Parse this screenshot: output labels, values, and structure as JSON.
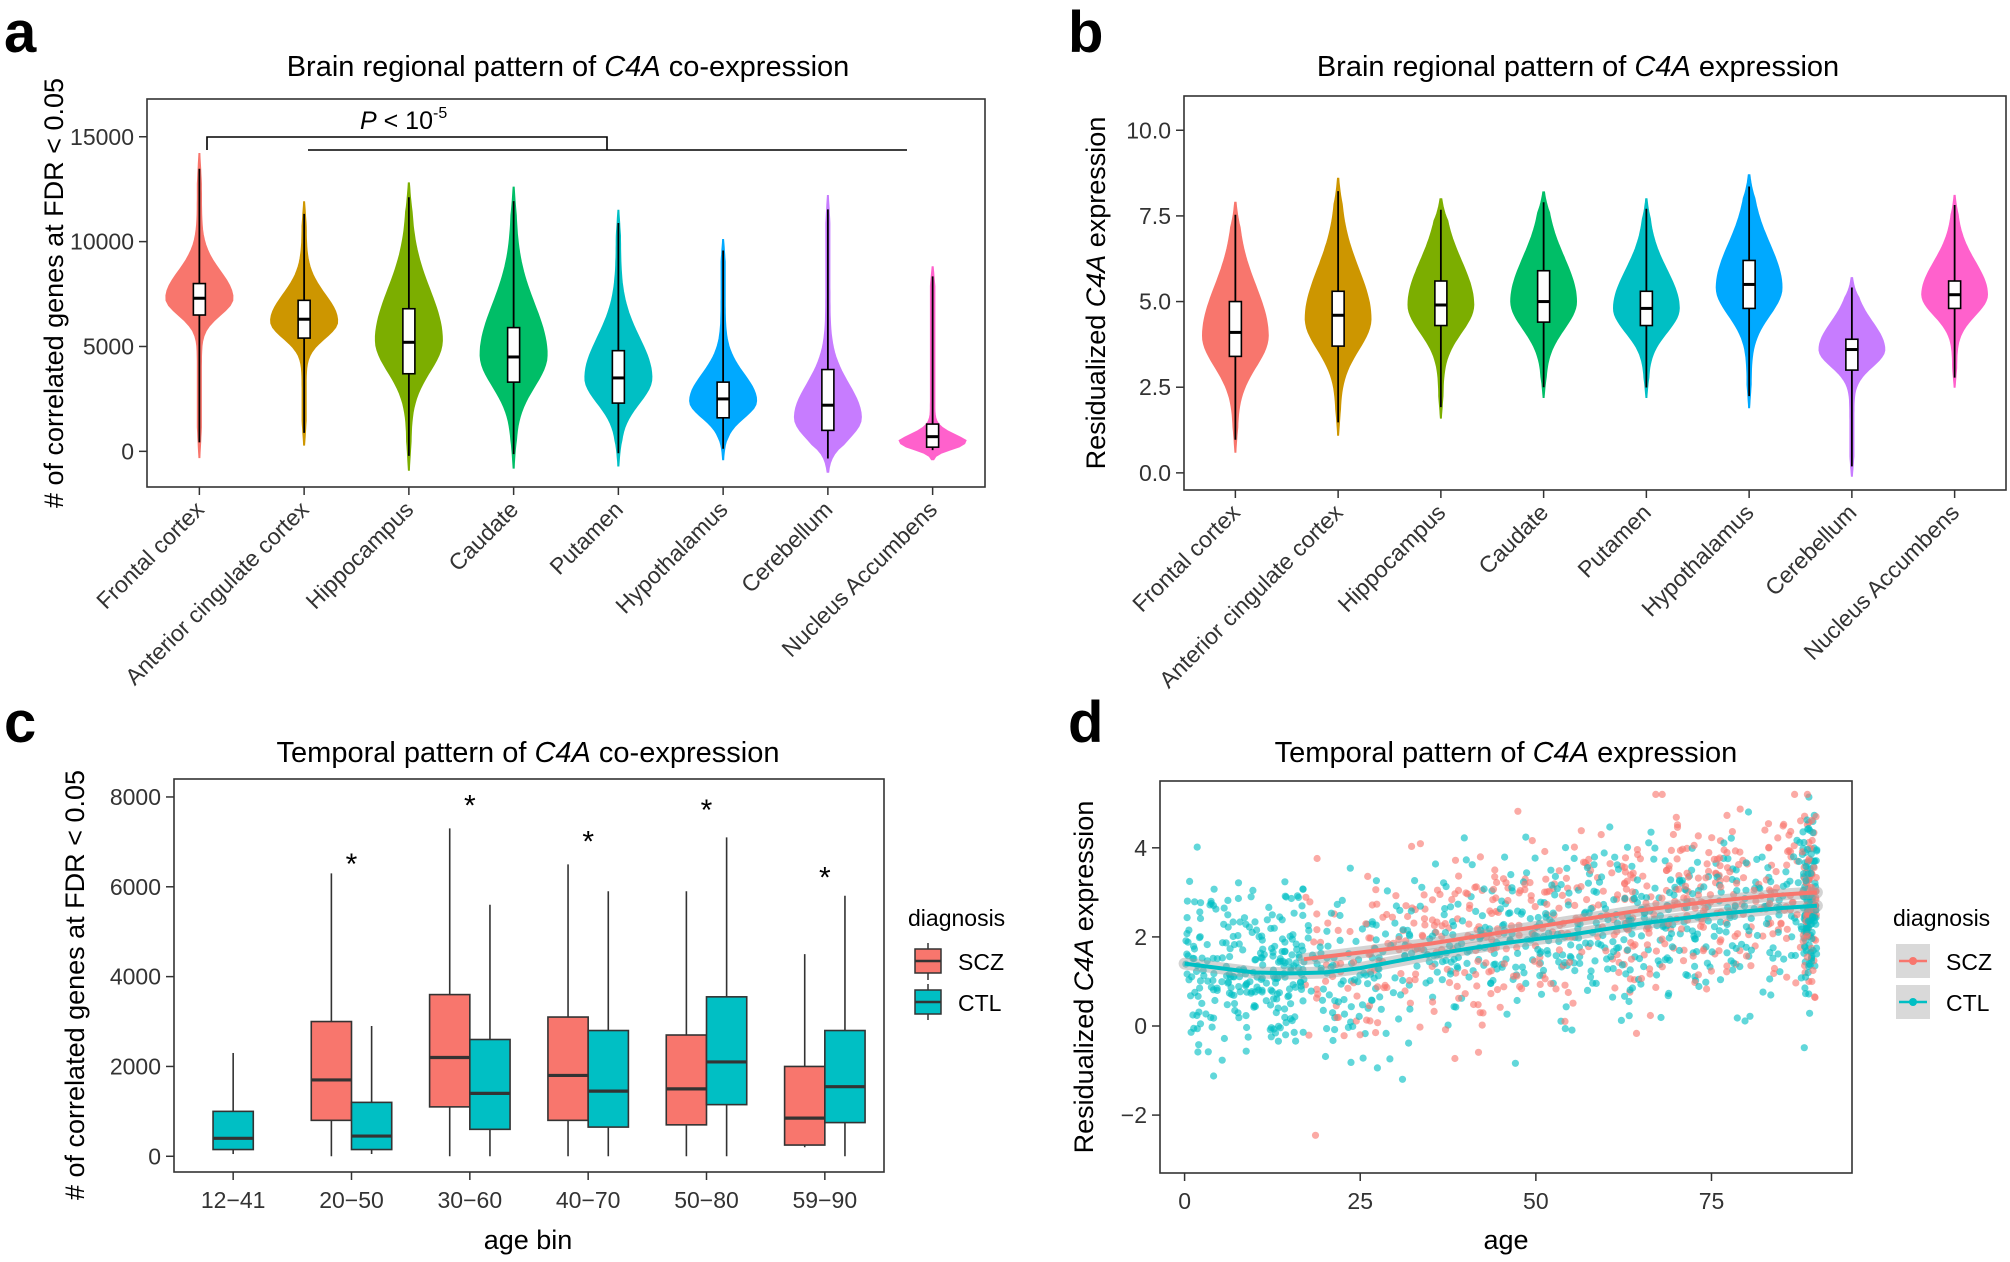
{
  "panels": [
    {
      "letter": "a",
      "title_pre": "Brain regional pattern of ",
      "title_gene": "C4A",
      "title_post": " co-expression",
      "ylabel": "# of correlated genes at FDR < 0.05",
      "significance": {
        "p_prefix": "P",
        "p_text": " < 10",
        "p_exp": "-5"
      }
    },
    {
      "letter": "b",
      "title_pre": "Brain regional pattern of ",
      "title_gene": "C4A",
      "title_post": " expression",
      "ylabel_pre": "Residualized ",
      "ylabel_gene": "C4A",
      "ylabel_post": " expression"
    },
    {
      "letter": "c",
      "title_pre": "Temporal pattern of ",
      "title_gene": "C4A",
      "title_post": " co-expression",
      "ylabel": "# of correlated genes at FDR < 0.05",
      "xlabel": "age bin",
      "legend": {
        "title": "diagnosis",
        "items": [
          "SCZ",
          "CTL"
        ]
      }
    },
    {
      "letter": "d",
      "title_pre": "Temporal pattern of ",
      "title_gene": "C4A",
      "title_post": " expression",
      "ylabel_pre": "Residualized ",
      "ylabel_gene": "C4A",
      "ylabel_post": " expression",
      "xlabel": "age",
      "legend": {
        "title": "diagnosis",
        "items": [
          "SCZ",
          "CTL"
        ]
      }
    }
  ],
  "colors": {
    "regions": [
      "#F8766D",
      "#CD9600",
      "#7CAE00",
      "#00BE67",
      "#00BFC4",
      "#00A9FF",
      "#C77CFF",
      "#FF61CC"
    ],
    "SCZ": "#F8766D",
    "CTL": "#00BFC4"
  },
  "chart_data": [
    {
      "type": "violin",
      "panel": "a",
      "categories": [
        "Frontal cortex",
        "Anterior cingulate cortex",
        "Hippocampus",
        "Caudate",
        "Putamen",
        "Hypothalamus",
        "Cerebellum",
        "Nucleus Accumbens"
      ],
      "yticks": [
        0,
        5000,
        10000,
        15000
      ],
      "yticklabels": [
        "0",
        "5000",
        "10000",
        "15000"
      ],
      "ylim": [
        -1700,
        16800
      ],
      "summaries": [
        {
          "min": -300,
          "q1": 6500,
          "median": 7300,
          "q3": 8000,
          "max": 14200,
          "mode": 7300,
          "spread": 800
        },
        {
          "min": 300,
          "q1": 5400,
          "median": 6300,
          "q3": 7200,
          "max": 11900,
          "mode": 6200,
          "spread": 800
        },
        {
          "min": -900,
          "q1": 3700,
          "median": 5200,
          "q3": 6800,
          "max": 12800,
          "mode": 5300,
          "spread": 1500
        },
        {
          "min": -800,
          "q1": 3300,
          "median": 4500,
          "q3": 5900,
          "max": 12600,
          "mode": 4600,
          "spread": 1500
        },
        {
          "min": -700,
          "q1": 2300,
          "median": 3500,
          "q3": 4800,
          "max": 11500,
          "mode": 3500,
          "spread": 1200
        },
        {
          "min": -400,
          "q1": 1600,
          "median": 2500,
          "q3": 3300,
          "max": 10100,
          "mode": 2400,
          "spread": 800
        },
        {
          "min": -1000,
          "q1": 1000,
          "median": 2200,
          "q3": 3900,
          "max": 12200,
          "mode": 1600,
          "spread": 1000
        },
        {
          "min": -400,
          "q1": 200,
          "median": 700,
          "q3": 1300,
          "max": 8800,
          "mode": 300,
          "spread": 300
        }
      ],
      "comparison": {
        "reference": "Frontal cortex",
        "compared": "Anterior cingulate cortex to Nucleus Accumbens",
        "p": "< 10^-5"
      }
    },
    {
      "type": "violin",
      "panel": "b",
      "categories": [
        "Frontal cortex",
        "Anterior cingulate cortex",
        "Hippocampus",
        "Caudate",
        "Putamen",
        "Hypothalamus",
        "Cerebellum",
        "Nucleus Accumbens"
      ],
      "yticks": [
        0,
        2.5,
        5,
        7.5,
        10
      ],
      "yticklabels": [
        "0.0",
        "2.5",
        "5.0",
        "7.5",
        "10.0"
      ],
      "ylim": [
        -0.5,
        11.0
      ],
      "summaries": [
        {
          "min": 0.6,
          "q1": 3.4,
          "median": 4.1,
          "q3": 5.0,
          "max": 7.9,
          "mode": 4.0,
          "spread": 0.9
        },
        {
          "min": 1.1,
          "q1": 3.7,
          "median": 4.6,
          "q3": 5.3,
          "max": 8.6,
          "mode": 4.5,
          "spread": 0.9
        },
        {
          "min": 1.6,
          "q1": 4.3,
          "median": 4.9,
          "q3": 5.6,
          "max": 8.0,
          "mode": 4.9,
          "spread": 0.8
        },
        {
          "min": 2.2,
          "q1": 4.4,
          "median": 5.0,
          "q3": 5.9,
          "max": 8.2,
          "mode": 5.0,
          "spread": 0.8
        },
        {
          "min": 2.2,
          "q1": 4.3,
          "median": 4.8,
          "q3": 5.3,
          "max": 8.0,
          "mode": 4.8,
          "spread": 0.7
        },
        {
          "min": 1.9,
          "q1": 4.8,
          "median": 5.5,
          "q3": 6.2,
          "max": 8.7,
          "mode": 5.4,
          "spread": 0.8
        },
        {
          "min": -0.1,
          "q1": 3.0,
          "median": 3.6,
          "q3": 3.9,
          "max": 5.7,
          "mode": 3.6,
          "spread": 0.5
        },
        {
          "min": 2.5,
          "q1": 4.8,
          "median": 5.2,
          "q3": 5.6,
          "max": 8.1,
          "mode": 5.2,
          "spread": 0.6
        }
      ]
    },
    {
      "type": "boxplot",
      "panel": "c",
      "categories": [
        "12−41",
        "20−50",
        "30−60",
        "40−70",
        "50−80",
        "59−90"
      ],
      "yticks": [
        0,
        2000,
        4000,
        6000,
        8000
      ],
      "yticklabels": [
        "0",
        "2000",
        "4000",
        "6000",
        "8000"
      ],
      "ylim": [
        -350,
        8400
      ],
      "series": [
        {
          "name": "SCZ",
          "boxes": [
            null,
            {
              "min": 0,
              "q1": 800,
              "median": 1700,
              "q3": 3000,
              "max": 6300
            },
            {
              "min": 0,
              "q1": 1100,
              "median": 2200,
              "q3": 3600,
              "max": 7300
            },
            {
              "min": 0,
              "q1": 800,
              "median": 1800,
              "q3": 3100,
              "max": 6500
            },
            {
              "min": 0,
              "q1": 700,
              "median": 1500,
              "q3": 2700,
              "max": 5900
            },
            {
              "min": 200,
              "q1": 250,
              "median": 850,
              "q3": 2000,
              "max": 4500
            }
          ]
        },
        {
          "name": "CTL",
          "boxes": [
            {
              "min": 50,
              "q1": 150,
              "median": 400,
              "q3": 1000,
              "max": 2300
            },
            {
              "min": 50,
              "q1": 150,
              "median": 450,
              "q3": 1200,
              "max": 2900
            },
            {
              "min": 0,
              "q1": 600,
              "median": 1400,
              "q3": 2600,
              "max": 5600
            },
            {
              "min": 0,
              "q1": 650,
              "median": 1450,
              "q3": 2800,
              "max": 5900
            },
            {
              "min": 0,
              "q1": 1150,
              "median": 2100,
              "q3": 3550,
              "max": 7100
            },
            {
              "min": 0,
              "q1": 750,
              "median": 1550,
              "q3": 2800,
              "max": 5800
            }
          ]
        }
      ],
      "significant": [
        false,
        true,
        true,
        true,
        true,
        true
      ],
      "significance_marker": "*",
      "significance_heights": [
        null,
        6600,
        7900,
        7100,
        7800,
        6300
      ]
    },
    {
      "type": "scatter",
      "panel": "d",
      "xticks": [
        0,
        25,
        50,
        75
      ],
      "xticklabels": [
        "0",
        "25",
        "50",
        "75"
      ],
      "yticks": [
        -2,
        0,
        2,
        4
      ],
      "yticklabels": [
        "−2",
        "0",
        "2",
        "4"
      ],
      "xlim": [
        -3.5,
        95
      ],
      "ylim": [
        -3.3,
        5.5
      ],
      "series": [
        {
          "name": "SCZ",
          "x_range": [
            17,
            90
          ],
          "n_points": 580,
          "trend": [
            [
              17,
              1.5
            ],
            [
              25,
              1.65
            ],
            [
              35,
              1.85
            ],
            [
              45,
              2.1
            ],
            [
              55,
              2.35
            ],
            [
              65,
              2.6
            ],
            [
              75,
              2.8
            ],
            [
              85,
              2.95
            ],
            [
              90,
              3.0
            ]
          ]
        },
        {
          "name": "CTL",
          "x_range": [
            0,
            90
          ],
          "n_points": 950,
          "trend": [
            [
              0,
              1.4
            ],
            [
              5,
              1.3
            ],
            [
              10,
              1.2
            ],
            [
              15,
              1.18
            ],
            [
              20,
              1.2
            ],
            [
              25,
              1.3
            ],
            [
              35,
              1.6
            ],
            [
              45,
              1.85
            ],
            [
              55,
              2.05
            ],
            [
              65,
              2.3
            ],
            [
              75,
              2.5
            ],
            [
              85,
              2.65
            ],
            [
              90,
              2.7
            ]
          ]
        }
      ]
    }
  ]
}
